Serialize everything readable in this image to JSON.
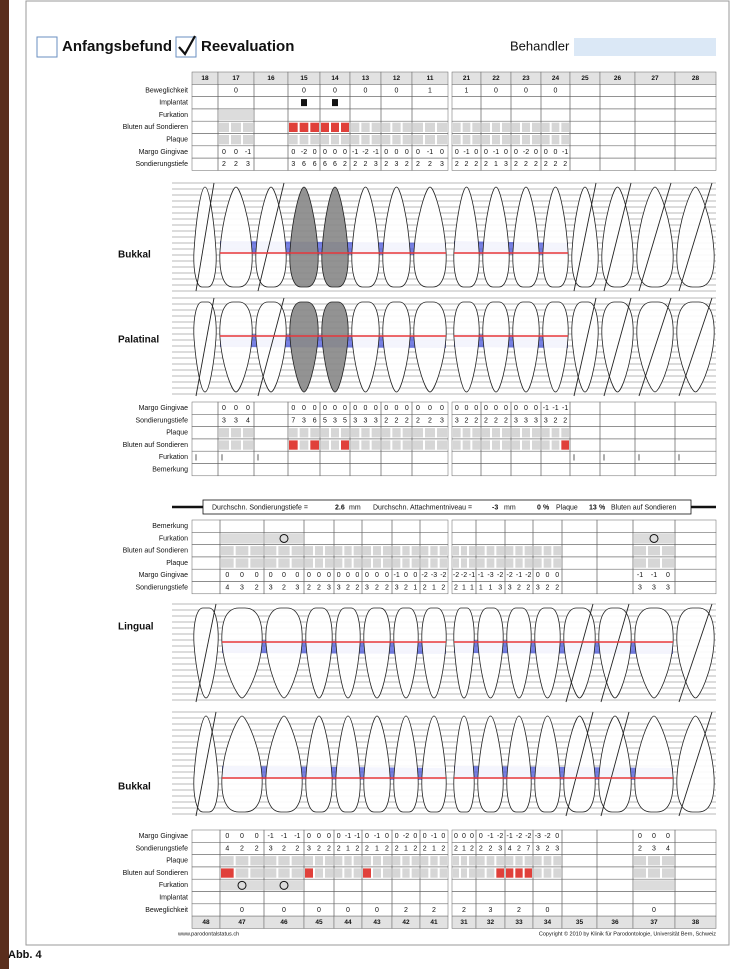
{
  "header": {
    "checkbox_1": "Anfangsbefund",
    "checkbox_2": "Reevaluation",
    "behandler": "Behandler"
  },
  "upper": {
    "teeth": [
      "18",
      "17",
      "16",
      "15",
      "14",
      "13",
      "12",
      "11",
      "21",
      "22",
      "23",
      "24",
      "25",
      "26",
      "27",
      "28"
    ],
    "rows_top": [
      "Beweglichkeit",
      "Implantat",
      "Furkation",
      "Bluten auf Sondieren",
      "Plaque",
      "Margo Gingivae",
      "Sondierungstiefe"
    ],
    "rows_bottom": [
      "Margo Gingivae",
      "Sondierungstiefe",
      "Plaque",
      "Bluten auf Sondieren",
      "Furkation",
      "Bemerkung"
    ],
    "region_1": "Bukkal",
    "region_2": "Palatinal",
    "beweglichkeit": [
      null,
      0,
      null,
      0,
      0,
      0,
      0,
      1,
      1,
      0,
      0,
      0,
      null,
      null,
      null,
      null
    ],
    "margo_bukkal": [
      null,
      [
        0,
        0,
        -1
      ],
      null,
      [
        0,
        -2,
        0
      ],
      [
        0,
        0,
        0
      ],
      [
        -1,
        -2,
        -1
      ],
      [
        0,
        0,
        0
      ],
      [
        0,
        -1,
        0
      ],
      [
        0,
        -1,
        0
      ],
      [
        0,
        -1,
        0
      ],
      [
        0,
        -2,
        0
      ],
      [
        0,
        0,
        -1
      ],
      null,
      null,
      null,
      null
    ],
    "sond_bukkal": [
      null,
      [
        2,
        2,
        3
      ],
      null,
      [
        3,
        6,
        6
      ],
      [
        6,
        6,
        2
      ],
      [
        2,
        2,
        3
      ],
      [
        2,
        3,
        2
      ],
      [
        2,
        2,
        3
      ],
      [
        2,
        2,
        2
      ],
      [
        2,
        1,
        3
      ],
      [
        2,
        2,
        2
      ],
      [
        2,
        2,
        2
      ],
      null,
      null,
      null,
      null
    ],
    "margo_palatinal": [
      null,
      [
        0,
        0,
        0
      ],
      null,
      [
        0,
        0,
        0
      ],
      [
        0,
        0,
        0
      ],
      [
        0,
        0,
        0
      ],
      [
        0,
        0,
        0
      ],
      [
        0,
        0,
        0
      ],
      [
        0,
        0,
        0
      ],
      [
        0,
        0,
        0
      ],
      [
        0,
        0,
        0
      ],
      [
        -1,
        -1,
        -1
      ],
      null,
      null,
      null,
      null
    ],
    "sond_palatinal": [
      null,
      [
        3,
        3,
        4
      ],
      null,
      [
        7,
        3,
        6
      ],
      [
        5,
        3,
        5
      ],
      [
        3,
        3,
        3
      ],
      [
        2,
        2,
        2
      ],
      [
        2,
        2,
        3
      ],
      [
        3,
        2,
        2
      ],
      [
        2,
        2,
        2
      ],
      [
        3,
        3,
        3
      ],
      [
        3,
        2,
        2
      ],
      null,
      null,
      null,
      null
    ]
  },
  "summary": {
    "sond_label": "Durchschn. Sondierungstiefe =",
    "sond_value": 2.6,
    "sond_unit": "mm",
    "att_label": "Durchschn. Attachmentniveau =",
    "att_value": -3,
    "att_unit": "mm",
    "plaque_value": 0,
    "plaque_unit": "%",
    "plaque_label": "Plaque",
    "bop_value": 13,
    "bop_unit": "%",
    "bop_label": "Bluten auf Sondieren"
  },
  "lower": {
    "teeth": [
      "48",
      "47",
      "46",
      "45",
      "44",
      "43",
      "42",
      "41",
      "31",
      "32",
      "33",
      "34",
      "35",
      "36",
      "37",
      "38"
    ],
    "rows_top": [
      "Bemerkung",
      "Furkation",
      "Bluten auf Sondieren",
      "Plaque",
      "Margo Gingivae",
      "Sondierungstiefe"
    ],
    "rows_bottom": [
      "Margo Gingivae",
      "Sondierungstiefe",
      "Plaque",
      "Bluten auf Sondieren",
      "Furkation",
      "Implantat",
      "Beweglichkeit"
    ],
    "region_1": "Lingual",
    "region_2": "Bukkal",
    "margo_lingual": [
      null,
      [
        0,
        0,
        0
      ],
      [
        0,
        0,
        0
      ],
      [
        0,
        0,
        0
      ],
      [
        0,
        0,
        0
      ],
      [
        0,
        0,
        0
      ],
      [
        -1,
        0,
        0
      ],
      [
        -2,
        -3,
        -2
      ],
      [
        -2,
        -2,
        -1
      ],
      [
        -1,
        -3,
        -2
      ],
      [
        -2,
        -1,
        -2
      ],
      [
        0,
        0,
        0
      ],
      null,
      null,
      [
        -1,
        -1,
        0
      ],
      null
    ],
    "sond_lingual": [
      null,
      [
        4,
        3,
        2
      ],
      [
        3,
        2,
        3
      ],
      [
        2,
        2,
        3
      ],
      [
        3,
        2,
        2
      ],
      [
        3,
        2,
        2
      ],
      [
        3,
        2,
        1
      ],
      [
        2,
        1,
        2
      ],
      [
        2,
        1,
        1
      ],
      [
        1,
        1,
        3
      ],
      [
        3,
        2,
        2
      ],
      [
        3,
        2,
        2
      ],
      null,
      null,
      [
        3,
        3,
        3
      ],
      null
    ],
    "margo_bukkal": [
      null,
      [
        0,
        0,
        0
      ],
      [
        -1,
        -1,
        -1
      ],
      [
        0,
        0,
        0
      ],
      [
        0,
        -1,
        -1
      ],
      [
        0,
        -1,
        0
      ],
      [
        0,
        -2,
        0
      ],
      [
        0,
        -1,
        0
      ],
      [
        0,
        0,
        0
      ],
      [
        0,
        -1,
        -2
      ],
      [
        -1,
        -2,
        -2
      ],
      [
        -3,
        -2,
        0
      ],
      null,
      null,
      [
        0,
        0,
        0
      ],
      null
    ],
    "sond_bukkal": [
      null,
      [
        4,
        2,
        2
      ],
      [
        3,
        2,
        2
      ],
      [
        3,
        2,
        2
      ],
      [
        2,
        1,
        2
      ],
      [
        2,
        1,
        2
      ],
      [
        2,
        1,
        2
      ],
      [
        2,
        1,
        2
      ],
      [
        2,
        1,
        2
      ],
      [
        2,
        2,
        3
      ],
      [
        4,
        2,
        7
      ],
      [
        3,
        2,
        3
      ],
      null,
      null,
      [
        2,
        3,
        4
      ],
      null
    ],
    "beweglichkeit": [
      null,
      0,
      0,
      0,
      0,
      0,
      2,
      2,
      2,
      3,
      2,
      0,
      null,
      null,
      0,
      null
    ]
  },
  "footer": {
    "website": "www.parodontalstatus.ch",
    "copyright": "Copyright © 2010 by Klinik für Parodontologie, Universität Bern, Schweiz"
  },
  "caption": "Abb. 4"
}
